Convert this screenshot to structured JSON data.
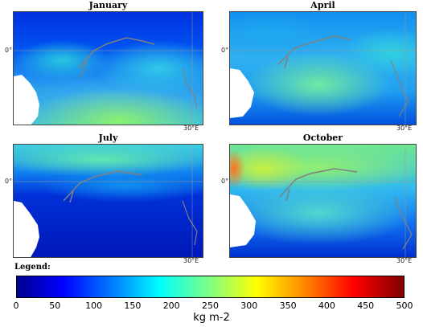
{
  "panels": [
    {
      "title": "January",
      "lat_label": "0°",
      "lon_label": "30°E"
    },
    {
      "title": "April",
      "lat_label": "0°",
      "lon_label": "30°E"
    },
    {
      "title": "July",
      "lat_label": "0°",
      "lon_label": "30°E"
    },
    {
      "title": "October",
      "lat_label": "0°",
      "lon_label": "30°E"
    }
  ],
  "legend": {
    "title": "Legend:",
    "unit": "kg m-2",
    "ticks": [
      "0",
      "50",
      "100",
      "150",
      "200",
      "250",
      "300",
      "350",
      "400",
      "450",
      "500"
    ],
    "range": [
      0,
      500
    ],
    "colormap": "jet"
  },
  "colors": {
    "land": "#ffffff",
    "coast": "#808080",
    "low": "#00008f",
    "high": "#800000"
  }
}
